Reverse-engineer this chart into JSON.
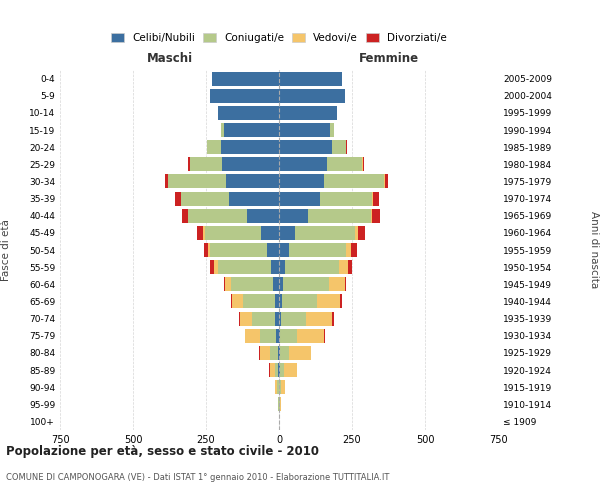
{
  "age_groups": [
    "100+",
    "95-99",
    "90-94",
    "85-89",
    "80-84",
    "75-79",
    "70-74",
    "65-69",
    "60-64",
    "55-59",
    "50-54",
    "45-49",
    "40-44",
    "35-39",
    "30-34",
    "25-29",
    "20-24",
    "15-19",
    "10-14",
    "5-9",
    "0-4"
  ],
  "birth_years": [
    "≤ 1909",
    "1910-1914",
    "1915-1919",
    "1920-1924",
    "1925-1929",
    "1930-1934",
    "1935-1939",
    "1940-1944",
    "1945-1949",
    "1950-1954",
    "1955-1959",
    "1960-1964",
    "1965-1969",
    "1970-1974",
    "1975-1979",
    "1980-1984",
    "1985-1989",
    "1990-1994",
    "1995-1999",
    "2000-2004",
    "2005-2009"
  ],
  "colors": {
    "celibi": "#3c6fa0",
    "coniugati": "#b5c98a",
    "vedovi": "#f5c56a",
    "divorziati": "#cc2222"
  },
  "male": {
    "celibi": [
      0,
      0,
      1,
      2,
      5,
      10,
      12,
      15,
      20,
      28,
      40,
      60,
      110,
      170,
      180,
      195,
      200,
      190,
      210,
      235,
      230
    ],
    "coniugati": [
      0,
      2,
      5,
      10,
      25,
      55,
      80,
      110,
      145,
      180,
      195,
      195,
      200,
      165,
      200,
      110,
      45,
      10,
      0,
      0,
      0
    ],
    "vedovi": [
      0,
      3,
      8,
      20,
      35,
      50,
      40,
      35,
      20,
      15,
      8,
      5,
      2,
      2,
      1,
      0,
      0,
      0,
      0,
      0,
      0
    ],
    "divorziati": [
      0,
      0,
      0,
      1,
      2,
      3,
      5,
      5,
      5,
      15,
      15,
      20,
      20,
      20,
      10,
      5,
      2,
      0,
      0,
      0,
      0
    ]
  },
  "female": {
    "nubili": [
      0,
      0,
      1,
      2,
      3,
      5,
      8,
      10,
      15,
      20,
      35,
      55,
      100,
      140,
      155,
      165,
      180,
      175,
      200,
      225,
      215
    ],
    "coniugate": [
      0,
      2,
      5,
      15,
      30,
      55,
      85,
      120,
      155,
      185,
      195,
      205,
      215,
      180,
      205,
      120,
      50,
      12,
      0,
      0,
      0
    ],
    "vedove": [
      1,
      5,
      15,
      45,
      75,
      95,
      90,
      80,
      55,
      30,
      18,
      10,
      5,
      3,
      2,
      1,
      0,
      0,
      0,
      0,
      0
    ],
    "divorziate": [
      0,
      0,
      0,
      1,
      2,
      3,
      5,
      5,
      5,
      15,
      20,
      25,
      25,
      20,
      12,
      5,
      2,
      0,
      0,
      0,
      0
    ]
  },
  "xlim": 750,
  "title": "Popolazione per età, sesso e stato civile - 2010",
  "subtitle": "COMUNE DI CAMPONOGARA (VE) - Dati ISTAT 1° gennaio 2010 - Elaborazione TUTTITALIA.IT",
  "xlabel_left": "Maschi",
  "xlabel_right": "Femmine",
  "ylabel_left": "Fasce di età",
  "ylabel_right": "Anni di nascita",
  "legend_labels": [
    "Celibi/Nubili",
    "Coniugati/e",
    "Vedovi/e",
    "Divorziati/e"
  ],
  "background_color": "#ffffff",
  "grid_color": "#cccccc"
}
